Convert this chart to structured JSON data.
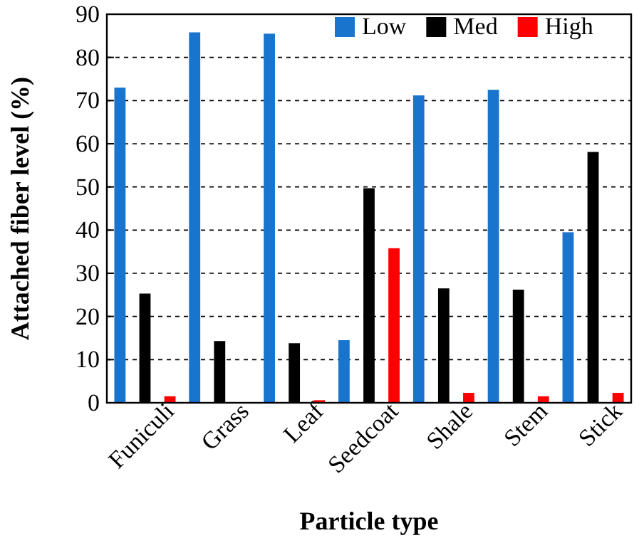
{
  "chart_data": {
    "type": "bar",
    "xlabel": "Particle type",
    "ylabel": "Attached fiber level (%)",
    "categories": [
      "Funiculi",
      "Grass",
      "Leaf",
      "Seedcoat",
      "Shale",
      "Stem",
      "Stick"
    ],
    "series": [
      {
        "name": "Low",
        "color": "#1874cd",
        "values": [
          73,
          85.8,
          85.5,
          14.5,
          71.2,
          72.5,
          39.5
        ]
      },
      {
        "name": "Med",
        "color": "#000000",
        "values": [
          25.3,
          14.3,
          13.8,
          49.7,
          26.5,
          26.2,
          58.1
        ]
      },
      {
        "name": "High",
        "color": "#ff0000",
        "values": [
          1.5,
          null,
          0.6,
          35.8,
          2.3,
          1.5,
          2.3
        ]
      }
    ],
    "ylim": [
      0,
      90
    ],
    "yticks": [
      0,
      10,
      20,
      30,
      40,
      50,
      60,
      70,
      80,
      90
    ],
    "grid": "y",
    "legend": "top right"
  }
}
